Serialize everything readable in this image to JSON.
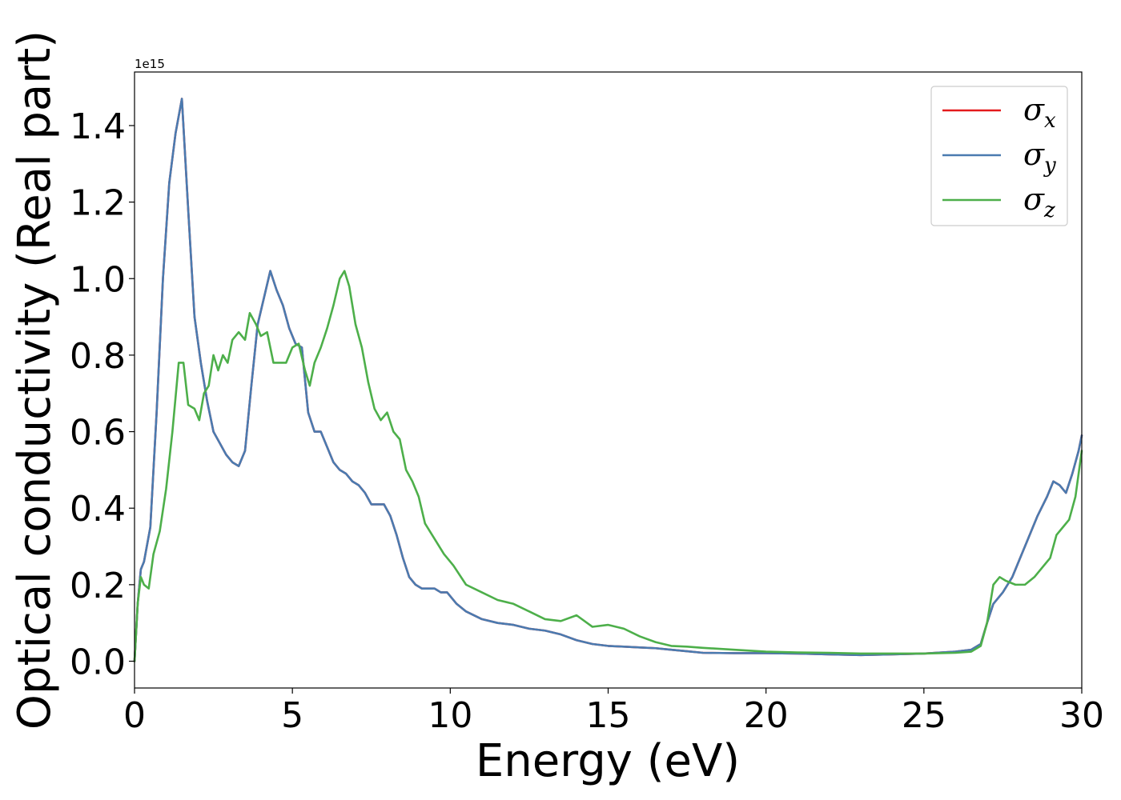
{
  "chart_data": {
    "type": "line",
    "title": "",
    "xlabel": "Energy (eV)",
    "ylabel": "Optical conductivity (Real part)",
    "y_offset_label": "1e15",
    "xlim": [
      0,
      30
    ],
    "ylim": [
      -0.07,
      1.54
    ],
    "xticks": [
      0,
      5,
      10,
      15,
      20,
      25,
      30
    ],
    "xtick_labels": [
      "0",
      "5",
      "10",
      "15",
      "20",
      "25",
      "30"
    ],
    "yticks": [
      0.0,
      0.2,
      0.4,
      0.6,
      0.8,
      1.0,
      1.2,
      1.4
    ],
    "ytick_labels": [
      "0.0",
      "0.2",
      "0.4",
      "0.6",
      "0.8",
      "1.0",
      "1.2",
      "1.4"
    ],
    "grid": false,
    "legend_position": "top-right",
    "series": [
      {
        "name": "σx",
        "label_base": "σ",
        "label_sub": "x",
        "color": "#e41a1c",
        "x": [
          0,
          0.1,
          0.2,
          0.3,
          0.5,
          0.7,
          0.9,
          1.1,
          1.3,
          1.5,
          1.7,
          1.9,
          2.1,
          2.3,
          2.5,
          2.7,
          2.9,
          3.1,
          3.3,
          3.5,
          3.7,
          3.9,
          4.1,
          4.3,
          4.5,
          4.7,
          4.9,
          5.1,
          5.3,
          5.5,
          5.7,
          5.9,
          6.1,
          6.3,
          6.5,
          6.7,
          6.9,
          7.1,
          7.3,
          7.5,
          7.7,
          7.9,
          8.1,
          8.3,
          8.5,
          8.7,
          8.9,
          9.1,
          9.3,
          9.5,
          9.7,
          9.9,
          10.2,
          10.5,
          11.0,
          11.5,
          12.0,
          12.5,
          13.0,
          13.5,
          14.0,
          14.5,
          15.0,
          15.5,
          16.0,
          16.5,
          17.0,
          17.5,
          18.0,
          19.0,
          20.0,
          21.0,
          22.0,
          23.0,
          24.0,
          25.0,
          26.0,
          26.5,
          26.8,
          27.0,
          27.2,
          27.5,
          27.8,
          28.0,
          28.3,
          28.6,
          28.9,
          29.1,
          29.3,
          29.5,
          29.7,
          29.9,
          30.0
        ],
        "y": [
          0.0,
          0.15,
          0.24,
          0.26,
          0.35,
          0.65,
          1.0,
          1.25,
          1.38,
          1.47,
          1.18,
          0.9,
          0.78,
          0.68,
          0.6,
          0.57,
          0.54,
          0.52,
          0.51,
          0.55,
          0.72,
          0.88,
          0.95,
          1.02,
          0.97,
          0.93,
          0.87,
          0.83,
          0.82,
          0.65,
          0.6,
          0.6,
          0.56,
          0.52,
          0.5,
          0.49,
          0.47,
          0.46,
          0.44,
          0.41,
          0.41,
          0.41,
          0.38,
          0.33,
          0.27,
          0.22,
          0.2,
          0.19,
          0.19,
          0.19,
          0.18,
          0.18,
          0.15,
          0.13,
          0.11,
          0.1,
          0.095,
          0.085,
          0.08,
          0.07,
          0.055,
          0.045,
          0.04,
          0.038,
          0.036,
          0.034,
          0.03,
          0.026,
          0.022,
          0.021,
          0.021,
          0.02,
          0.018,
          0.016,
          0.018,
          0.02,
          0.025,
          0.03,
          0.045,
          0.1,
          0.15,
          0.18,
          0.22,
          0.26,
          0.32,
          0.38,
          0.43,
          0.47,
          0.46,
          0.44,
          0.49,
          0.55,
          0.59
        ]
      },
      {
        "name": "σy",
        "label_base": "σ",
        "label_sub": "y",
        "color": "#4a7bb0",
        "x": [
          0,
          0.1,
          0.2,
          0.3,
          0.5,
          0.7,
          0.9,
          1.1,
          1.3,
          1.5,
          1.7,
          1.9,
          2.1,
          2.3,
          2.5,
          2.7,
          2.9,
          3.1,
          3.3,
          3.5,
          3.7,
          3.9,
          4.1,
          4.3,
          4.5,
          4.7,
          4.9,
          5.1,
          5.3,
          5.5,
          5.7,
          5.9,
          6.1,
          6.3,
          6.5,
          6.7,
          6.9,
          7.1,
          7.3,
          7.5,
          7.7,
          7.9,
          8.1,
          8.3,
          8.5,
          8.7,
          8.9,
          9.1,
          9.3,
          9.5,
          9.7,
          9.9,
          10.2,
          10.5,
          11.0,
          11.5,
          12.0,
          12.5,
          13.0,
          13.5,
          14.0,
          14.5,
          15.0,
          15.5,
          16.0,
          16.5,
          17.0,
          17.5,
          18.0,
          19.0,
          20.0,
          21.0,
          22.0,
          23.0,
          24.0,
          25.0,
          26.0,
          26.5,
          26.8,
          27.0,
          27.2,
          27.5,
          27.8,
          28.0,
          28.3,
          28.6,
          28.9,
          29.1,
          29.3,
          29.5,
          29.7,
          29.9,
          30.0
        ],
        "y": [
          0.0,
          0.15,
          0.24,
          0.26,
          0.35,
          0.65,
          1.0,
          1.25,
          1.38,
          1.47,
          1.18,
          0.9,
          0.78,
          0.68,
          0.6,
          0.57,
          0.54,
          0.52,
          0.51,
          0.55,
          0.72,
          0.88,
          0.95,
          1.02,
          0.97,
          0.93,
          0.87,
          0.83,
          0.82,
          0.65,
          0.6,
          0.6,
          0.56,
          0.52,
          0.5,
          0.49,
          0.47,
          0.46,
          0.44,
          0.41,
          0.41,
          0.41,
          0.38,
          0.33,
          0.27,
          0.22,
          0.2,
          0.19,
          0.19,
          0.19,
          0.18,
          0.18,
          0.15,
          0.13,
          0.11,
          0.1,
          0.095,
          0.085,
          0.08,
          0.07,
          0.055,
          0.045,
          0.04,
          0.038,
          0.036,
          0.034,
          0.03,
          0.026,
          0.022,
          0.021,
          0.021,
          0.02,
          0.018,
          0.016,
          0.018,
          0.02,
          0.025,
          0.03,
          0.045,
          0.1,
          0.15,
          0.18,
          0.22,
          0.26,
          0.32,
          0.38,
          0.43,
          0.47,
          0.46,
          0.44,
          0.49,
          0.55,
          0.59
        ]
      },
      {
        "name": "σz",
        "label_base": "σ",
        "label_sub": "z",
        "color": "#4daf4a",
        "x": [
          0,
          0.1,
          0.2,
          0.3,
          0.45,
          0.6,
          0.8,
          1.0,
          1.2,
          1.4,
          1.55,
          1.7,
          1.9,
          2.05,
          2.2,
          2.35,
          2.5,
          2.65,
          2.8,
          2.95,
          3.1,
          3.3,
          3.5,
          3.65,
          3.85,
          4.0,
          4.2,
          4.4,
          4.6,
          4.8,
          5.0,
          5.2,
          5.4,
          5.55,
          5.7,
          5.9,
          6.1,
          6.3,
          6.5,
          6.65,
          6.8,
          7.0,
          7.2,
          7.4,
          7.6,
          7.8,
          8.0,
          8.2,
          8.4,
          8.6,
          8.8,
          9.0,
          9.2,
          9.5,
          9.8,
          10.1,
          10.5,
          11.0,
          11.5,
          12.0,
          12.5,
          13.0,
          13.5,
          14.0,
          14.5,
          15.0,
          15.5,
          16.0,
          16.5,
          17.0,
          17.5,
          18.0,
          19.0,
          20.0,
          21.0,
          22.0,
          23.0,
          24.0,
          25.0,
          26.0,
          26.5,
          26.8,
          27.0,
          27.2,
          27.4,
          27.6,
          27.9,
          28.2,
          28.5,
          28.8,
          29.0,
          29.2,
          29.4,
          29.6,
          29.8,
          30.0
        ],
        "y": [
          0.0,
          0.15,
          0.22,
          0.2,
          0.19,
          0.28,
          0.34,
          0.45,
          0.6,
          0.78,
          0.78,
          0.67,
          0.66,
          0.63,
          0.7,
          0.72,
          0.8,
          0.76,
          0.8,
          0.78,
          0.84,
          0.86,
          0.84,
          0.91,
          0.88,
          0.85,
          0.86,
          0.78,
          0.78,
          0.78,
          0.82,
          0.83,
          0.76,
          0.72,
          0.78,
          0.82,
          0.87,
          0.93,
          1.0,
          1.02,
          0.98,
          0.88,
          0.82,
          0.73,
          0.66,
          0.63,
          0.65,
          0.6,
          0.58,
          0.5,
          0.47,
          0.43,
          0.36,
          0.32,
          0.28,
          0.25,
          0.2,
          0.18,
          0.16,
          0.15,
          0.13,
          0.11,
          0.105,
          0.12,
          0.09,
          0.095,
          0.085,
          0.065,
          0.05,
          0.04,
          0.038,
          0.035,
          0.03,
          0.025,
          0.023,
          0.022,
          0.02,
          0.02,
          0.02,
          0.022,
          0.025,
          0.04,
          0.1,
          0.2,
          0.22,
          0.21,
          0.2,
          0.2,
          0.22,
          0.25,
          0.27,
          0.33,
          0.35,
          0.37,
          0.43,
          0.55
        ]
      }
    ]
  }
}
